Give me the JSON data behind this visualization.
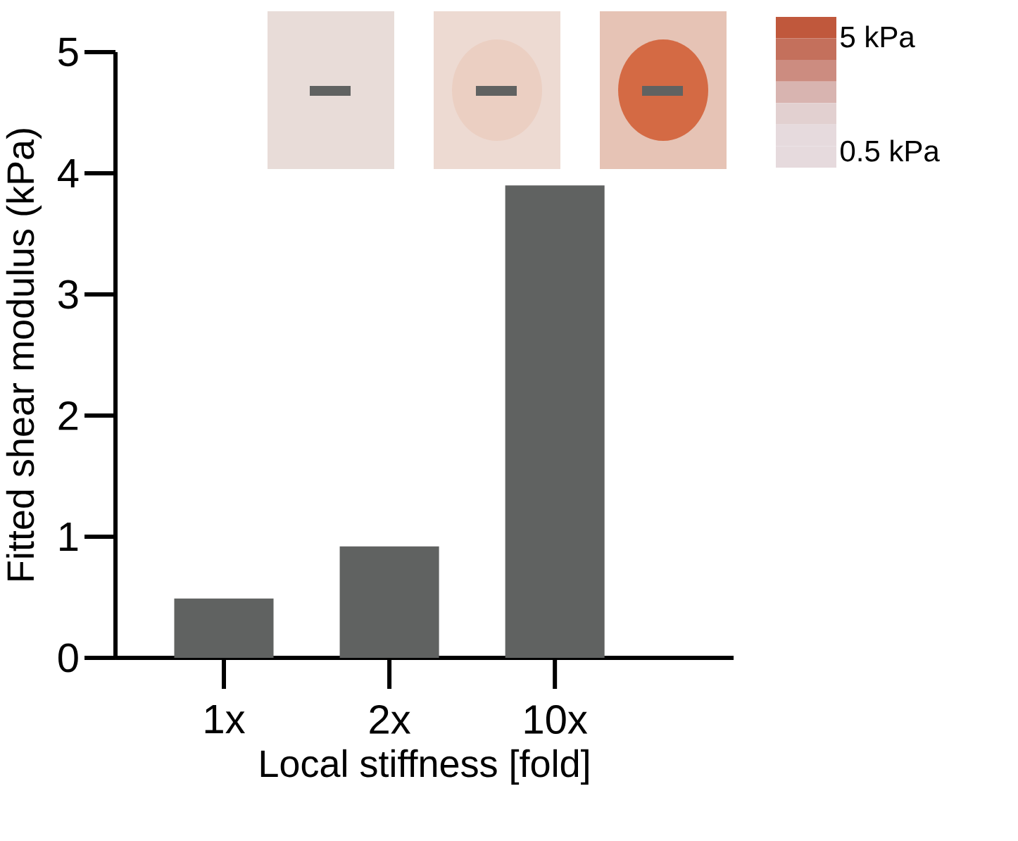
{
  "chart_data": {
    "type": "bar",
    "xlabel": "Local stiffness [fold]",
    "ylabel": "Fitted shear modulus (kPa)",
    "categories": [
      "1x",
      "2x",
      "10x"
    ],
    "values": [
      0.49,
      0.92,
      3.9
    ],
    "color": "#606261",
    "ylim": [
      0,
      5
    ],
    "yticks": [
      0,
      1,
      2,
      3,
      4,
      5
    ],
    "annotations": [
      "5 kPa",
      "0.5 kPa"
    ]
  }
}
